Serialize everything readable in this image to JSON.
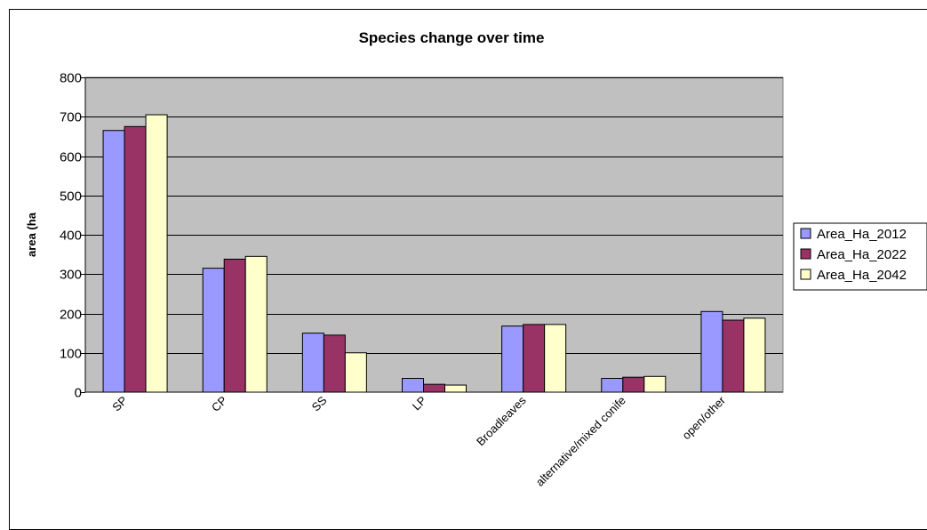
{
  "chart_data": {
    "type": "bar",
    "title": "Species change over time",
    "xlabel": "",
    "ylabel": "area (ha",
    "ylim": [
      0,
      800
    ],
    "yticks": [
      0,
      100,
      200,
      300,
      400,
      500,
      600,
      700,
      800
    ],
    "grid": true,
    "legend_position": "right",
    "plot_background": "#c0c0c0",
    "categories": [
      "SP",
      "CP",
      "SS",
      "LP",
      "Broadleaves",
      "alternative/mixed conife",
      "open/other"
    ],
    "series": [
      {
        "name": "Area_Ha_2012",
        "color": "#9999ff",
        "values": [
          665,
          315,
          150,
          35,
          168,
          35,
          205
        ]
      },
      {
        "name": "Area_Ha_2022",
        "color": "#993366",
        "values": [
          675,
          338,
          145,
          20,
          172,
          38,
          183
        ]
      },
      {
        "name": "Area_Ha_2042",
        "color": "#ffffcc",
        "values": [
          705,
          345,
          100,
          18,
          172,
          40,
          188
        ]
      }
    ]
  }
}
